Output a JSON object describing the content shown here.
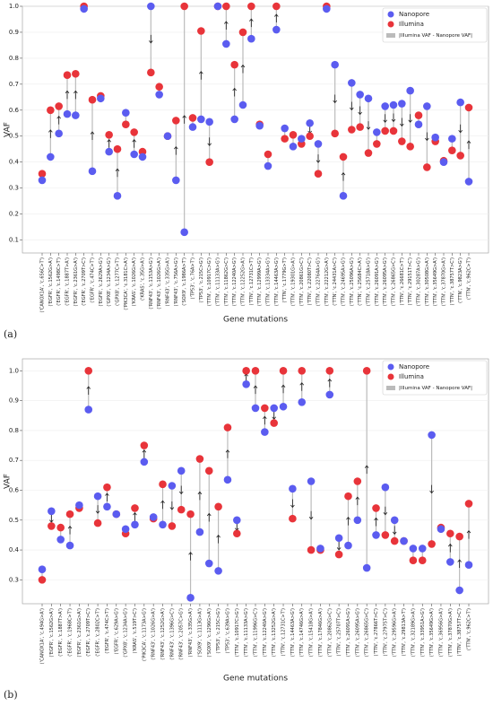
{
  "chart_data": [
    {
      "type": "dumbbell",
      "label": "(a)",
      "ylabel": "VAF",
      "xlabel": "Gene mutations",
      "legend": "upper right",
      "grid": true,
      "ylim": [
        0.05,
        1.0
      ],
      "yticks": [
        0.1,
        0.2,
        0.3,
        0.4,
        0.5,
        0.6,
        0.7,
        0.8,
        0.9,
        {
          "value": 1,
          "label": "1.0"
        }
      ],
      "difference": {
        "name": "|Illumina VAF - Nanopore VAF|",
        "color": "#bbbbbb"
      },
      "categories": [
        "('CANOX1A', 'c.656C>T')",
        "('EGFR', 'c.1562G>A')",
        "('EGFR', 'c.1498C>T')",
        "('EGFR', 'c.1887T>A')",
        "('EGFR', 'c.2361G>A')",
        "('EGFR', 'c.2709T>C')",
        "('EGFR', 'c.474C>T')",
        "('EGFR', 'c.2629A>G')",
        "('GPX8', 'c.1234A>G')",
        "('GPX8', 'c.1277C>T')",
        "('PIK3CA', 'c.3181C>A')",
        "('KRAS', 'c.1026G>A')",
        "('KRAS', 'c.35G>A')",
        "('RNF43', 'c.1153A>G')",
        "('RNF43', 'c.1026G>A')",
        "('RNF43', 'c.335G>A')",
        "('RNF43', 'c.756A>G')",
        "('SOX9', 'c.1986A>T')",
        "('TP53', 'c.76A>T')",
        "('TP53', 'c.215C>G')",
        "('TTN', 'c.10917C>G')",
        "('TTN', 'c.11133A>G')",
        "('TTN', 'c.11862G>C')",
        "('TTN', 'c.12240A>G')",
        "('TTN', 'c.12252G>A')",
        "('TTN', 'c.12731C>T')",
        "('TTN', 'c.12999A>G')",
        "('TTN', 'c.13334A>G')",
        "('TTN', 'c.14463A>G')",
        "('TTN', 'c.1779G>T')",
        "('TTN', 'c.19301G>A')",
        "('TTN', 'c.20861G>C')",
        "('TTN', 'c.22080T>C')",
        "('TTN', 'c.22764A>G')",
        "('TTN', 'c.22212G>A')",
        "('TTN', 'c.24431A>C')",
        "('TTN', 'c.24695A>G')",
        "('TTN', 'c.25096A>G')",
        "('TTN', 'c.25684C>A')",
        "('TTN', 'c.25718A>G')",
        "('TTN', 'c.26091A>G')",
        "('TTN', 'c.26095A>G')",
        "('TTN', 'c.26865G>C')",
        "('TTN', 'c.26681C>T')",
        "('TTN', 'c.29151T>C')",
        "('TTN', 'c.30287A>G')",
        "('TTN', 'c.30508G>A')",
        "('TTN', 'c.35649G>A')",
        "('TTN', 'c.37870G>A')",
        "('TTN', 'c.38757T>C')",
        "('TTN', 'c.9823A>G')",
        "('TTN', 'c.962C>T')"
      ],
      "series": [
        {
          "name": "Nanopore",
          "color": "#5b5cf0",
          "values": [
            0.33,
            0.42,
            0.51,
            0.585,
            0.58,
            0.99,
            0.365,
            0.645,
            0.44,
            0.27,
            0.59,
            0.43,
            0.42,
            1.0,
            0.66,
            0.5,
            0.33,
            0.13,
            0.535,
            0.565,
            0.555,
            1.0,
            0.855,
            0.565,
            0.62,
            0.875,
            0.54,
            0.385,
            0.91,
            0.53,
            0.46,
            0.49,
            0.55,
            0.47,
            0.99,
            0.775,
            0.27,
            0.705,
            0.66,
            0.645,
            0.515,
            0.615,
            0.62,
            0.625,
            0.675,
            0.545,
            0.615,
            0.495,
            0.4,
            0.49,
            0.63,
            0.325
          ]
        },
        {
          "name": "Illumina",
          "color": "#e8343a",
          "values": [
            0.355,
            0.6,
            0.615,
            0.735,
            0.74,
            1.0,
            0.64,
            0.655,
            0.505,
            0.45,
            0.545,
            0.515,
            0.44,
            0.745,
            0.69,
            0.5,
            0.56,
            1.0,
            0.57,
            0.905,
            0.4,
            1.0,
            1.0,
            0.775,
            0.9,
            1.0,
            0.545,
            0.43,
            1.0,
            0.49,
            0.505,
            0.47,
            0.5,
            0.355,
            1.0,
            0.51,
            0.42,
            0.525,
            0.535,
            0.435,
            0.47,
            0.52,
            0.52,
            0.48,
            0.46,
            0.58,
            0.38,
            0.48,
            0.405,
            0.445,
            0.425,
            0.61
          ]
        }
      ]
    },
    {
      "type": "dumbbell",
      "label": "(b)",
      "ylabel": "VAF",
      "xlabel": "Gene mutations",
      "legend": "upper right",
      "grid": true,
      "ylim": [
        0.22,
        1.04
      ],
      "yticks": [
        0.3,
        0.4,
        0.5,
        0.6,
        0.7,
        0.8,
        0.9,
        {
          "value": 1,
          "label": "1.0"
        }
      ],
      "difference": {
        "name": "|Illumina VAF - Nanopore VAF|",
        "color": "#bbbbbb"
      },
      "categories": [
        "('CANOX1A', 'c.494G>A')",
        "('EGFR', 'c.1562G>A')",
        "('EGFR', 'c.1887T>A')",
        "('EGFR', 'c.1968C>T')",
        "('EGFR', 'c.2361G>A')",
        "('EGFR', 'c.2709T>C')",
        "('EGFR', 'c.2802C>T')",
        "('EGFR', 'c.474C>T')",
        "('EGFR', 'c.629A>G')",
        "('GPX8', 'c.1234A>G')",
        "('KRAS', 'c.519T>C')",
        "('PIK3CA', 'c.1173A>G')",
        "('RNF43', 'c.1026G>A')",
        "('RNF43', 'c.1252G>A')",
        "('RNF43', 'c.1396G>C')",
        "('RNF43', 'c.2057C>G')",
        "('RNF43', 'c.335G>A')",
        "('SOX9', 'c.1113G>A')",
        "('SOX9', 'c.1296G>A')",
        "('TP53', 'c.215C>G')",
        "('TP53', 'c.639A>G')",
        "('TTN', 'c.10917C>G')",
        "('TTN', 'c.11133A>G')",
        "('TTN', 'c.11996G>C')",
        "('TTN', 'c.12240A>G')",
        "('TTN', 'c.13252G>A')",
        "('TTN', 'c.12731C>T')",
        "('TTN', 'c.14463A>G')",
        "('TTN', 'c.14746G>A')",
        "('TTN', 'c.15418G>A')",
        "('TTN', 'c.17846G>A')",
        "('TTN', 'c.20862G>C')",
        "('TTN', 'c.25707T>C')",
        "('TTN', 'c.26091A>G')",
        "('TTN', 'c.26095A>G')",
        "('TTN', 'c.26865G>C')",
        "('TTN', 'c.27866T>C')",
        "('TTN', 'c.27975T>C')",
        "('TTN', 'c.29596G>A')",
        "('TTN', 'c.29813A>T')",
        "('TTN', 'c.32189G>A')",
        "('TTN', 'c.33951A>G')",
        "('TTN', 'c.35649G>A')",
        "('TTN', 'c.36956G>A')",
        "('TTN', 'c.37870G>A')",
        "('TTN', 'c.38757T>C')",
        "('TTN', 'c.962C>T')"
      ],
      "series": [
        {
          "name": "Nanopore",
          "color": "#5b5cf0",
          "values": [
            0.335,
            0.53,
            0.435,
            0.415,
            0.55,
            0.87,
            0.58,
            0.545,
            0.52,
            0.47,
            0.485,
            0.695,
            0.51,
            0.485,
            0.615,
            0.665,
            0.24,
            0.46,
            0.355,
            0.33,
            0.635,
            0.5,
            0.955,
            0.875,
            0.795,
            0.875,
            0.88,
            0.605,
            0.895,
            0.63,
            0.405,
            0.92,
            0.44,
            0.415,
            0.5,
            0.34,
            0.45,
            0.61,
            0.5,
            0.43,
            0.405,
            0.405,
            0.785,
            0.47,
            0.36,
            0.265,
            0.35
          ]
        },
        {
          "name": "Illumina",
          "color": "#e8343a",
          "values": [
            0.3,
            0.48,
            0.475,
            0.52,
            0.54,
            1.0,
            0.49,
            0.61,
            0.52,
            0.455,
            0.54,
            0.75,
            0.505,
            0.62,
            0.48,
            0.535,
            0.52,
            0.705,
            0.665,
            0.545,
            0.81,
            0.455,
            1.0,
            1.0,
            0.875,
            0.825,
            1.0,
            0.505,
            1.0,
            0.4,
            0.4,
            1.0,
            0.385,
            0.58,
            0.63,
            1.0,
            0.54,
            0.45,
            0.43,
            0.43,
            0.365,
            0.365,
            0.42,
            0.475,
            0.455,
            0.445,
            0.555
          ]
        }
      ]
    }
  ]
}
